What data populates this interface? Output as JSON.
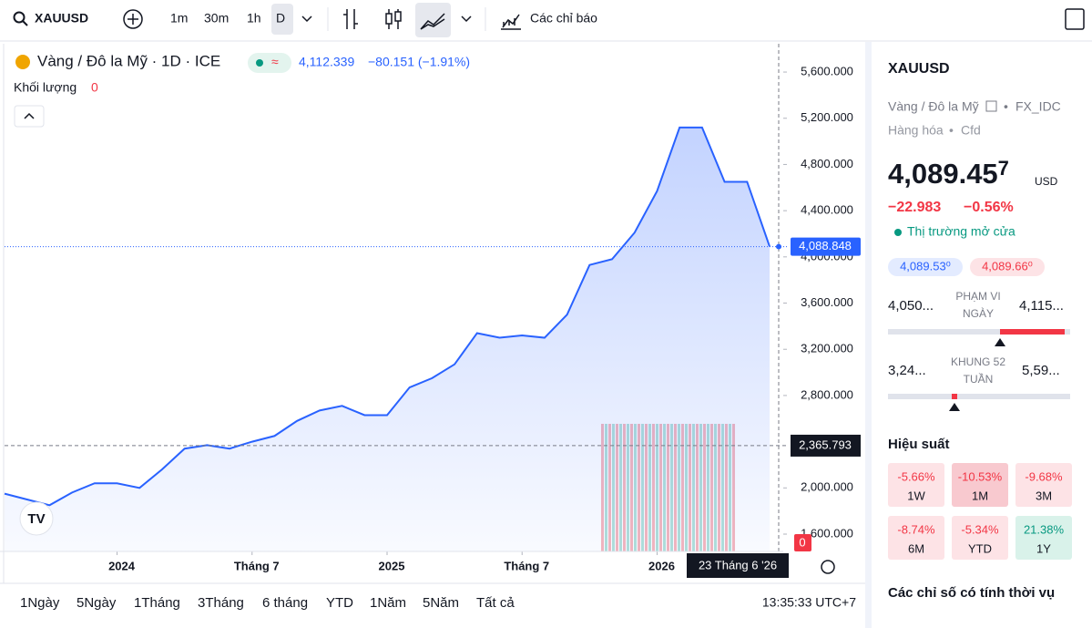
{
  "toolbar": {
    "symbol": "XAUUSD",
    "intervals": [
      "1m",
      "30m",
      "1h",
      "D"
    ],
    "indicators": "Các chỉ báo"
  },
  "chart_data": {
    "type": "line",
    "legend": {
      "title": "Vàng / Đô la Mỹ · 1D · ICE",
      "price": "4,112.339",
      "change": "−80.151 (−1.91%)",
      "volume_label": "Khối lượng",
      "volume_value": "0"
    },
    "x": [
      "2023-08",
      "2023-09",
      "2023-10",
      "2023-11",
      "2023-12",
      "2024-01",
      "2024-02",
      "2024-03",
      "2024-04",
      "2024-05",
      "2024-06",
      "2024-07",
      "2024-08",
      "2024-09",
      "2024-10",
      "2024-11",
      "2024-12",
      "2025-01",
      "2025-02",
      "2025-03",
      "2025-04",
      "2025-05",
      "2025-06",
      "2025-07",
      "2025-08",
      "2025-09",
      "2025-10",
      "2025-11",
      "2025-12",
      "2026-01",
      "2026-02",
      "2026-03",
      "2026-04",
      "2026-05",
      "2026-06"
    ],
    "values": [
      1950,
      1900,
      1850,
      1960,
      2040,
      2040,
      2000,
      2160,
      2340,
      2370,
      2340,
      2400,
      2450,
      2580,
      2670,
      2710,
      2630,
      2630,
      2870,
      2950,
      3070,
      3340,
      3300,
      3320,
      3300,
      3500,
      3930,
      3980,
      4210,
      4570,
      5120,
      5120,
      4650,
      4650,
      4090
    ],
    "color": "#2962ff",
    "xlim": [
      "2023-08",
      "2026-06"
    ],
    "xticks": [
      {
        "value": "2024-01",
        "label": "2024"
      },
      {
        "value": "2024-07",
        "label": "Tháng 7"
      },
      {
        "value": "2025-01",
        "label": "2025"
      },
      {
        "value": "2025-07",
        "label": "Tháng 7"
      },
      {
        "value": "2026-01",
        "label": "2026"
      }
    ],
    "ylim": [
      1450,
      5845
    ],
    "yticks": [
      {
        "value": 1600,
        "label": "1,600.000"
      },
      {
        "value": 2000,
        "label": "2,000.000"
      },
      {
        "value": 2800,
        "label": "2,800.000"
      },
      {
        "value": 3200,
        "label": "3,200.000"
      },
      {
        "value": 3600,
        "label": "3,600.000"
      },
      {
        "value": 4000,
        "label": "4,000.000"
      },
      {
        "value": 4400,
        "label": "4,400.000"
      },
      {
        "value": 4800,
        "label": "4,800.000"
      },
      {
        "value": 5200,
        "label": "5,200.000"
      },
      {
        "value": 5600,
        "label": "5,600.000"
      }
    ],
    "price_line": {
      "value": 4088.848,
      "label": "4,088.848"
    },
    "crosshair": {
      "value": 2365.793,
      "label": "2,365.793",
      "x_label": "23 Tháng 6 '26"
    },
    "badge": "0"
  },
  "footer": {
    "periods": [
      "1Ngày",
      "5Ngày",
      "1Tháng",
      "3Tháng",
      "6 tháng",
      "YTD",
      "1Năm",
      "5Năm",
      "Tất cả"
    ],
    "time": "13:35:33 UTC+7"
  },
  "panel": {
    "symbol": "XAUUSD",
    "name": "Vàng / Đô la Mỹ",
    "exchange": "FX_IDC",
    "category": "Hàng hóa",
    "kind": "Cfd",
    "price_main": "4,089.45",
    "price_last": "7",
    "currency": "USD",
    "change": "−22.983",
    "change_pct": "−0.56%",
    "status": "Thị trường mở cửa",
    "bid": "4,089.53⁰",
    "ask": "4,089.66⁰",
    "day_range": {
      "low": "4,050...",
      "label_1": "PHẠM VI",
      "label_2": "NGÀY",
      "high": "4,115..."
    },
    "year_range": {
      "low": "3,24...",
      "label_1": "KHUNG 52",
      "label_2": "TUẦN",
      "high": "5,59..."
    },
    "performance_title": "Hiệu suất",
    "performance": [
      {
        "value": "-5.66%",
        "period": "1W"
      },
      {
        "value": "-10.53%",
        "period": "1M"
      },
      {
        "value": "-9.68%",
        "period": "3M"
      },
      {
        "value": "-8.74%",
        "period": "6M"
      },
      {
        "value": "-5.34%",
        "period": "YTD"
      },
      {
        "value": "21.38%",
        "period": "1Y"
      }
    ],
    "seasonal_title": "Các chỉ số có tính thời vụ"
  }
}
